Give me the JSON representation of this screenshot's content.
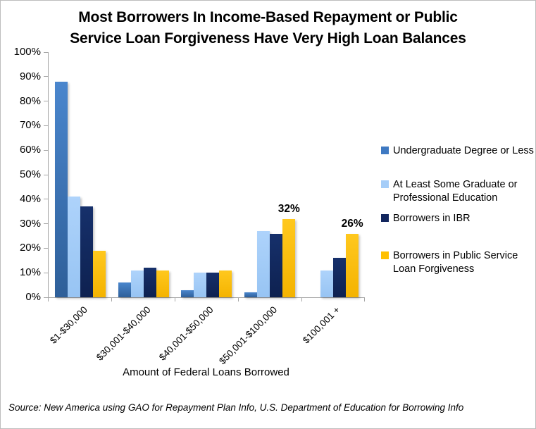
{
  "title_lines": [
    "Most Borrowers In Income-Based Repayment or Public",
    "Service Loan Forgiveness Have Very High Loan Balances"
  ],
  "source": "Source: New America using GAO for Repayment Plan Info, U.S. Department of Education for Borrowing Info",
  "chart_data": {
    "type": "bar",
    "title": "Most Borrowers In Income-Based Repayment or Public Service Loan Forgiveness Have Very High Loan Balances",
    "xlabel": "Amount of Federal Loans Borrowed",
    "ylabel": "",
    "ylim": [
      0,
      100
    ],
    "ytick_step": 10,
    "ytick_suffix": "%",
    "grid": false,
    "legend_position": "right",
    "categories": [
      "$1-$30,000",
      "$30,001-$40,000",
      "$40,001-$50,000",
      "$50,001-$100,000",
      "$100,001 +"
    ],
    "series": [
      {
        "name": "Undergraduate Degree or Less",
        "color": "#3E79C2",
        "gradient": [
          "#4A86CD",
          "#2E5F99"
        ],
        "values": [
          88,
          6,
          3,
          2,
          0
        ]
      },
      {
        "name": "At Least Some Graduate or Professional Education",
        "color": "#A5CDF8",
        "gradient": [
          "#AED3FB",
          "#97C4F3"
        ],
        "values": [
          41,
          11,
          10,
          27,
          11
        ]
      },
      {
        "name": "Borrowers in IBR",
        "color": "#12265E",
        "gradient": [
          "#16306B",
          "#0E2150"
        ],
        "values": [
          37,
          12,
          10,
          26,
          16
        ]
      },
      {
        "name": "Borrowers in Public Service Loan Forgiveness",
        "color": "#FFC000",
        "gradient": [
          "#FFC81E",
          "#F4B300"
        ],
        "values": [
          19,
          11,
          11,
          32,
          26
        ]
      }
    ],
    "data_labels": [
      {
        "series_index": 3,
        "category_index": 3,
        "label": "32%"
      },
      {
        "series_index": 3,
        "category_index": 4,
        "label": "26%"
      }
    ]
  }
}
